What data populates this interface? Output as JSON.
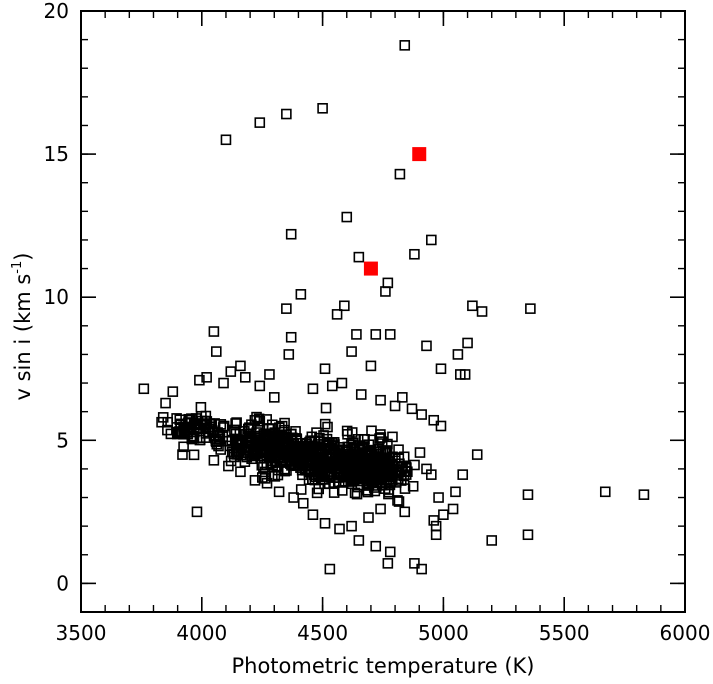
{
  "chart_data": {
    "type": "scatter",
    "xlabel": "Photometric temperature (K)",
    "ylabel_main": "v sin i (km s",
    "ylabel_sup": "-1",
    "ylabel_close": ")",
    "xlim": [
      3500,
      6000
    ],
    "ylim": [
      -1,
      20
    ],
    "xticks": [
      3500,
      4000,
      4500,
      5000,
      5500,
      6000
    ],
    "yticks": [
      0,
      5,
      10,
      15,
      20
    ],
    "x_minor_step": 100,
    "y_minor_step": 1,
    "grid": false,
    "legend": "none",
    "series": [
      {
        "marker": "open-square",
        "color": "#000000",
        "points": [
          [
            4840,
            18.8
          ],
          [
            4500,
            16.6
          ],
          [
            4350,
            16.4
          ],
          [
            4240,
            16.1
          ],
          [
            4100,
            15.5
          ],
          [
            4820,
            14.3
          ],
          [
            4600,
            12.8
          ],
          [
            4950,
            12.0
          ],
          [
            4370,
            12.2
          ],
          [
            4650,
            11.4
          ],
          [
            4880,
            11.5
          ],
          [
            4770,
            10.5
          ],
          [
            4760,
            10.2
          ],
          [
            4410,
            10.1
          ],
          [
            4590,
            9.7
          ],
          [
            4350,
            9.6
          ],
          [
            5120,
            9.7
          ],
          [
            5160,
            9.5
          ],
          [
            5360,
            9.6
          ],
          [
            4560,
            9.4
          ],
          [
            4050,
            8.8
          ],
          [
            4370,
            8.6
          ],
          [
            4640,
            8.7
          ],
          [
            4720,
            8.7
          ],
          [
            4780,
            8.7
          ],
          [
            4930,
            8.3
          ],
          [
            5100,
            8.4
          ],
          [
            4060,
            8.1
          ],
          [
            4620,
            8.1
          ],
          [
            5060,
            8.0
          ],
          [
            4360,
            8.0
          ],
          [
            4160,
            7.6
          ],
          [
            4990,
            7.5
          ],
          [
            5070,
            7.3
          ],
          [
            4700,
            7.6
          ],
          [
            4510,
            7.5
          ],
          [
            4280,
            7.3
          ],
          [
            3760,
            6.8
          ],
          [
            5090,
            7.3
          ],
          [
            4830,
            6.5
          ],
          [
            3980,
            2.5
          ],
          [
            4530,
            0.5
          ],
          [
            4910,
            0.5
          ],
          [
            4770,
            0.7
          ],
          [
            4880,
            0.7
          ],
          [
            4780,
            1.1
          ],
          [
            4720,
            1.3
          ],
          [
            4650,
            1.5
          ],
          [
            5200,
            1.5
          ],
          [
            4970,
            1.7
          ],
          [
            5350,
            1.7
          ],
          [
            5350,
            3.1
          ],
          [
            5670,
            3.2
          ],
          [
            5830,
            3.1
          ],
          [
            5140,
            4.5
          ],
          [
            5080,
            3.8
          ],
          [
            5050,
            3.2
          ],
          [
            5040,
            2.6
          ],
          [
            5000,
            2.4
          ],
          [
            4980,
            3.0
          ],
          [
            4960,
            2.2
          ],
          [
            4970,
            2.0
          ],
          [
            4950,
            3.8
          ],
          [
            4930,
            4.0
          ],
          [
            3920,
            4.5
          ],
          [
            3850,
            6.3
          ],
          [
            3880,
            6.7
          ],
          [
            3990,
            7.1
          ],
          [
            4020,
            7.2
          ],
          [
            4090,
            7.0
          ],
          [
            4120,
            7.4
          ],
          [
            4180,
            7.2
          ],
          [
            4240,
            6.9
          ],
          [
            4300,
            6.5
          ],
          [
            4460,
            6.8
          ],
          [
            4540,
            6.9
          ],
          [
            4580,
            7.0
          ],
          [
            4660,
            6.6
          ],
          [
            4740,
            6.4
          ],
          [
            4800,
            6.2
          ],
          [
            4870,
            6.1
          ],
          [
            4910,
            5.9
          ],
          [
            4960,
            5.7
          ],
          [
            4990,
            5.5
          ],
          [
            4840,
            2.5
          ],
          [
            4810,
            2.9
          ],
          [
            4740,
            2.6
          ],
          [
            4690,
            2.3
          ],
          [
            4620,
            2.0
          ],
          [
            4570,
            1.9
          ],
          [
            4510,
            2.1
          ],
          [
            4460,
            2.4
          ],
          [
            4420,
            2.8
          ],
          [
            4380,
            3.0
          ],
          [
            4320,
            3.2
          ],
          [
            4270,
            3.5
          ],
          [
            4220,
            3.6
          ],
          [
            4160,
            3.9
          ],
          [
            4110,
            4.1
          ],
          [
            4050,
            4.3
          ]
        ]
      },
      {
        "marker": "filled-square",
        "color": "#ff0000",
        "points": [
          [
            4900,
            15.0
          ],
          [
            4700,
            11.0
          ]
        ]
      }
    ],
    "cloud": {
      "description": "dense cluster",
      "clusters": [
        {
          "x_center": 4250,
          "x_spread": 150,
          "y_center": 4.9,
          "y_spread": 0.55,
          "count": 180
        },
        {
          "x_center": 4450,
          "x_spread": 180,
          "y_center": 4.4,
          "y_spread": 0.6,
          "count": 220
        },
        {
          "x_center": 4700,
          "x_spread": 130,
          "y_center": 4.0,
          "y_spread": 0.6,
          "count": 240
        },
        {
          "x_center": 3980,
          "x_spread": 90,
          "y_center": 5.4,
          "y_spread": 0.5,
          "count": 80
        },
        {
          "x_center": 4600,
          "x_spread": 250,
          "y_center": 4.3,
          "y_spread": 1.0,
          "count": 120
        }
      ]
    }
  }
}
